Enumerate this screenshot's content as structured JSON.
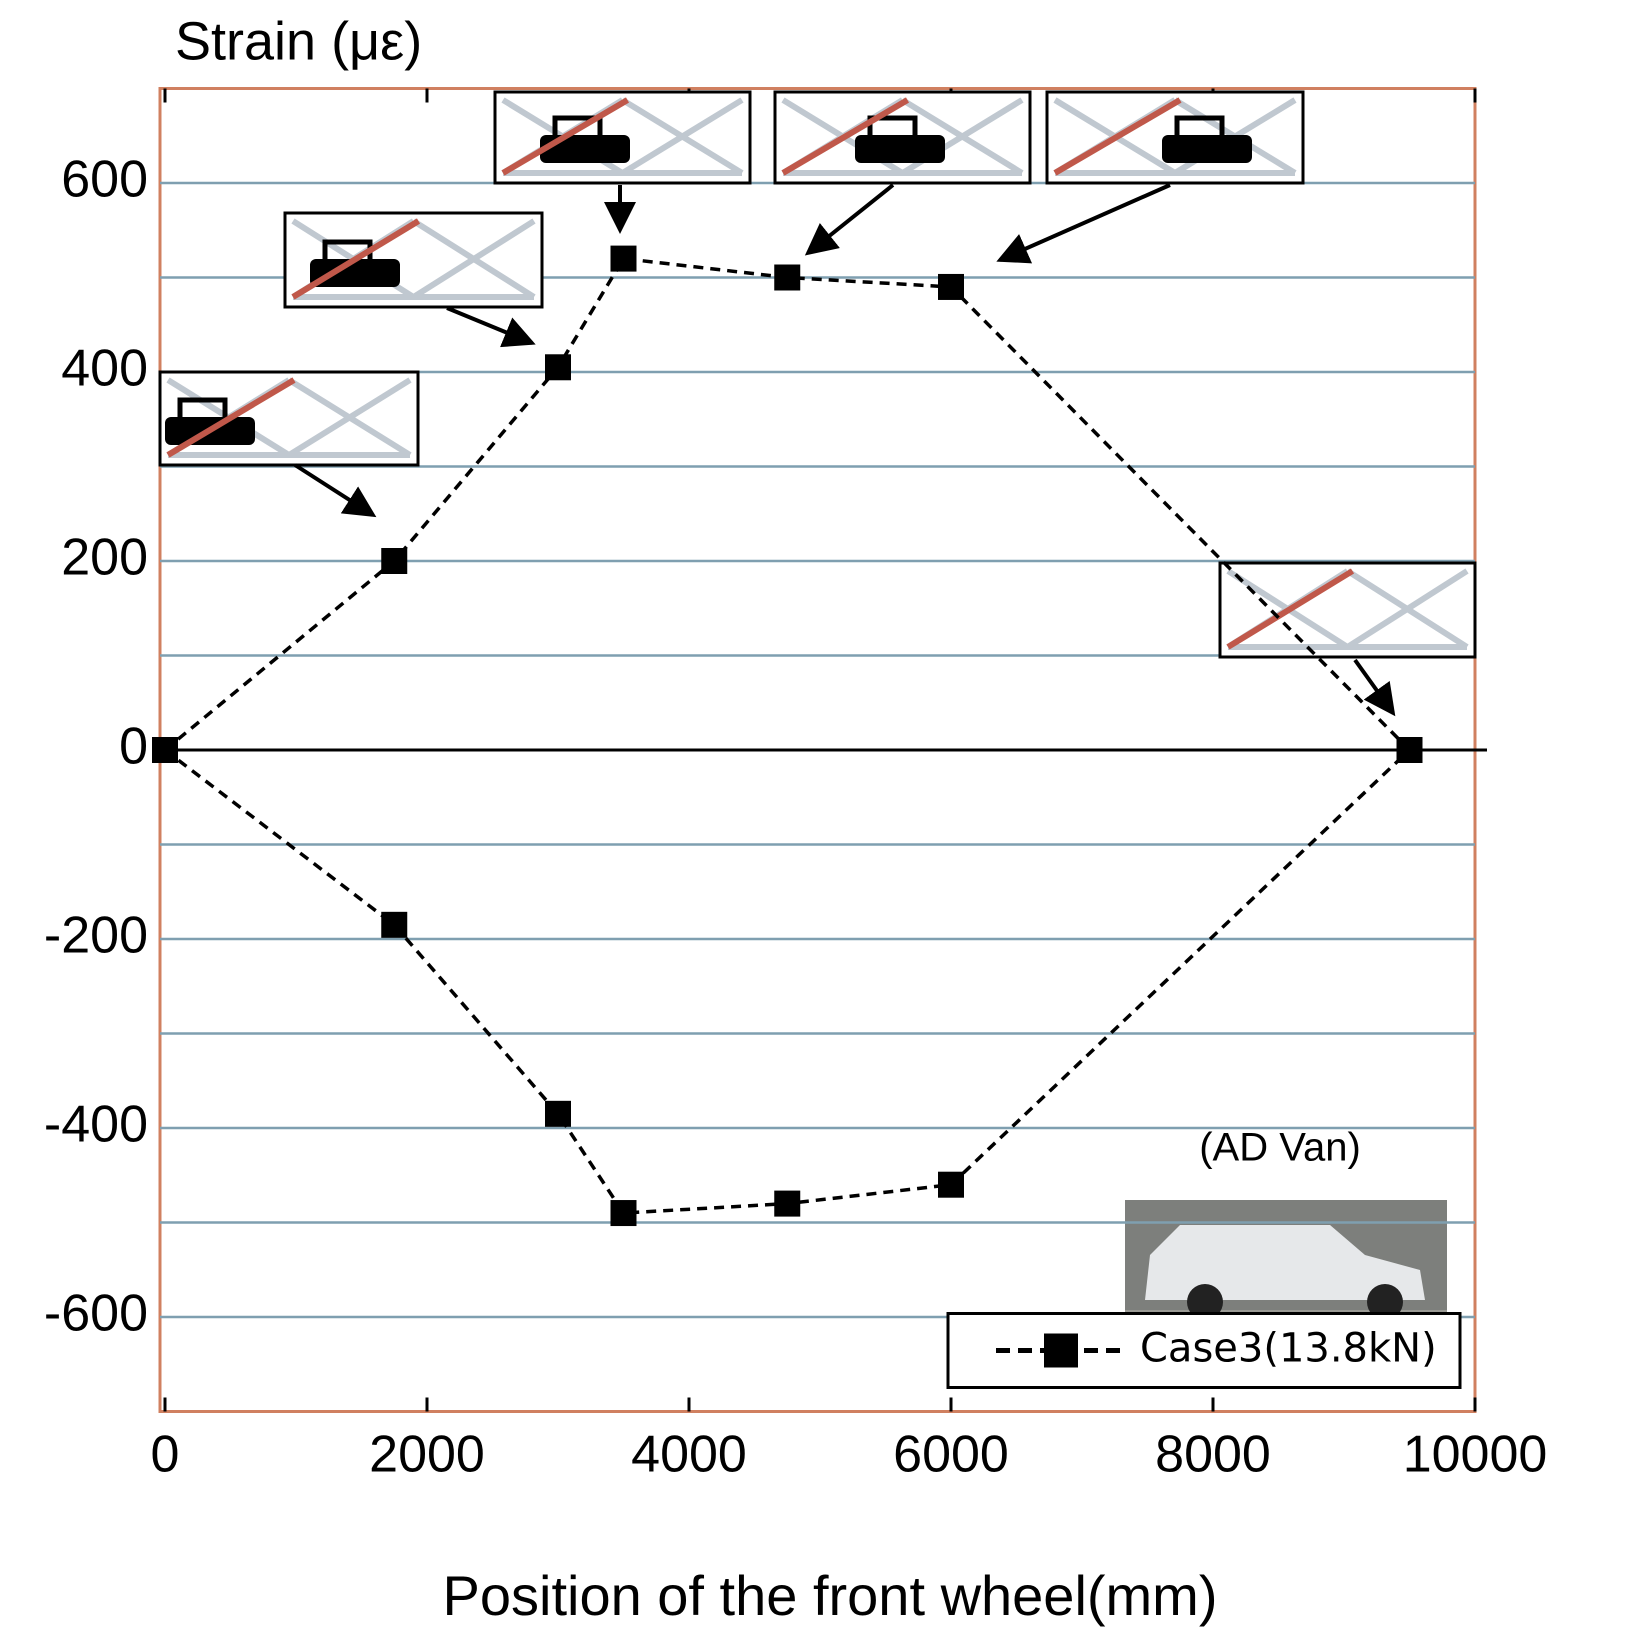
{
  "chart_data": {
    "type": "line",
    "title": "Strain (με)",
    "x_label": "Position of the front wheel(mm)",
    "annotation": "(AD Van)",
    "x": [
      0,
      1750,
      3000,
      3500,
      4750,
      6000,
      9500
    ],
    "series": [
      {
        "name": "Case3(13.8kN)",
        "color": "#000000",
        "values": [
          0,
          200,
          405,
          520,
          500,
          490,
          0
        ]
      },
      {
        "color": "#000000",
        "values": [
          0,
          -185,
          -385,
          -490,
          -480,
          -460,
          0
        ]
      }
    ],
    "xlim": [
      0,
      10000
    ],
    "xticks": [
      0,
      2000,
      4000,
      6000,
      8000,
      10000
    ],
    "ylim": [
      -700,
      700
    ],
    "yticks": [
      -600,
      -400,
      -200,
      0,
      200,
      400,
      600
    ],
    "yminorticks": [
      -500,
      -300,
      -100,
      100,
      300,
      500
    ],
    "grid": true,
    "grid_color": "#7f9fb0",
    "axis_color": "#d08060",
    "legend": "lower right"
  }
}
